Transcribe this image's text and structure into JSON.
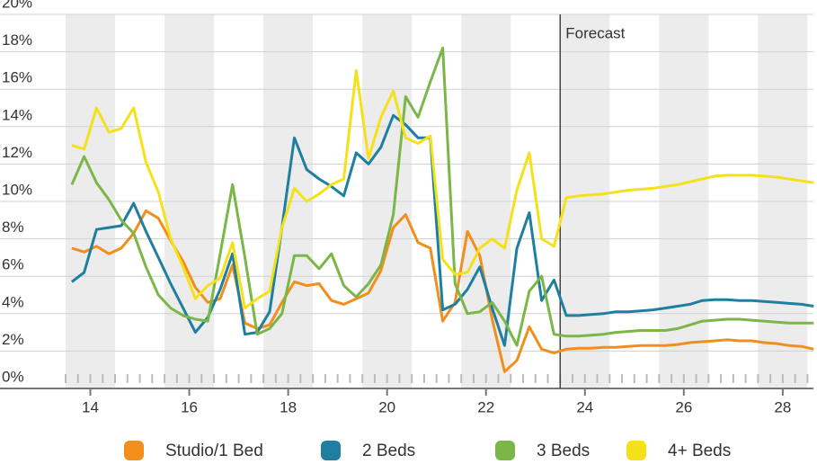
{
  "chart_data": {
    "type": "line",
    "x": [
      13.625,
      13.875,
      14.125,
      14.375,
      14.625,
      14.875,
      15.125,
      15.375,
      15.625,
      15.875,
      16.125,
      16.375,
      16.625,
      16.875,
      17.125,
      17.375,
      17.625,
      17.875,
      18.125,
      18.375,
      18.625,
      18.875,
      19.125,
      19.375,
      19.625,
      19.875,
      20.125,
      20.375,
      20.625,
      20.875,
      21.125,
      21.375,
      21.625,
      21.875,
      22.125,
      22.375,
      22.625,
      22.875,
      23.125,
      23.375,
      23.625,
      23.875,
      24.125,
      24.375,
      24.625,
      24.875,
      25.125,
      25.375,
      25.625,
      25.875,
      26.125,
      26.375,
      26.625,
      26.875,
      27.125,
      27.375,
      27.625,
      27.875,
      28.125,
      28.375,
      28.625
    ],
    "xlim": [
      13.5,
      28.62
    ],
    "xticks": [
      14,
      16,
      18,
      20,
      22,
      24,
      26,
      28
    ],
    "ylim": [
      0,
      20
    ],
    "yticks": [
      {
        "value": 0,
        "label": "0%"
      },
      {
        "value": 2,
        "label": "2%"
      },
      {
        "value": 4,
        "label": "4%"
      },
      {
        "value": 6,
        "label": "6%"
      },
      {
        "value": 8,
        "label": "8%"
      },
      {
        "value": 10,
        "label": "10%"
      },
      {
        "value": 12,
        "label": "12%"
      },
      {
        "value": 14,
        "label": "14%"
      },
      {
        "value": 16,
        "label": "16%"
      },
      {
        "value": 18,
        "label": "18%"
      },
      {
        "value": 20,
        "label": "20%"
      }
    ],
    "grid": true,
    "legend": "bottom",
    "annotation": {
      "text": "Forecast",
      "x": 23.5
    },
    "series": [
      {
        "name": "Studio/1 Bed",
        "color": "#f28e1c",
        "values": [
          7.5,
          7.3,
          7.6,
          7.2,
          7.5,
          8.3,
          9.5,
          9.1,
          7.9,
          6.8,
          5.4,
          4.6,
          4.8,
          6.6,
          3.5,
          3.2,
          3.4,
          4.6,
          5.7,
          5.5,
          5.6,
          4.7,
          4.5,
          4.8,
          5.1,
          6.3,
          8.6,
          9.3,
          7.8,
          7.5,
          3.6,
          4.6,
          8.4,
          7.1,
          3.7,
          0.9,
          1.5,
          3.3,
          2.1,
          1.9,
          2.1,
          2.15,
          2.15,
          2.2,
          2.2,
          2.25,
          2.3,
          2.3,
          2.3,
          2.35,
          2.45,
          2.5,
          2.55,
          2.6,
          2.55,
          2.55,
          2.45,
          2.4,
          2.3,
          2.25,
          2.1
        ]
      },
      {
        "name": "2 Beds",
        "color": "#1f7fa0",
        "values": [
          5.7,
          6.2,
          8.5,
          8.6,
          8.7,
          9.9,
          8.4,
          7.0,
          5.6,
          4.3,
          3.0,
          3.8,
          5.3,
          7.2,
          2.9,
          3.0,
          4.1,
          8.6,
          13.4,
          11.7,
          11.2,
          10.8,
          10.3,
          12.6,
          12.0,
          12.9,
          14.6,
          14.1,
          13.4,
          13.4,
          4.2,
          4.5,
          5.3,
          6.5,
          4.3,
          2.3,
          7.5,
          9.4,
          4.7,
          5.8,
          3.9,
          3.9,
          3.95,
          4.0,
          4.1,
          4.1,
          4.15,
          4.2,
          4.3,
          4.4,
          4.5,
          4.7,
          4.75,
          4.75,
          4.7,
          4.7,
          4.65,
          4.6,
          4.55,
          4.5,
          4.4
        ]
      },
      {
        "name": "3 Beds",
        "color": "#7ab648",
        "values": [
          10.9,
          12.4,
          11.0,
          10.1,
          9.0,
          8.3,
          6.5,
          5.0,
          4.3,
          3.9,
          3.7,
          3.6,
          7.2,
          10.9,
          7.0,
          2.9,
          3.2,
          4.0,
          7.1,
          7.1,
          6.4,
          7.2,
          5.5,
          4.9,
          5.6,
          6.6,
          9.3,
          15.6,
          14.5,
          16.4,
          18.2,
          5.6,
          4.0,
          4.1,
          4.6,
          3.6,
          2.3,
          5.2,
          6.0,
          2.9,
          2.8,
          2.8,
          2.85,
          2.9,
          3.0,
          3.05,
          3.1,
          3.1,
          3.1,
          3.2,
          3.4,
          3.6,
          3.65,
          3.7,
          3.7,
          3.65,
          3.6,
          3.55,
          3.5,
          3.5,
          3.5
        ]
      },
      {
        "name": "4+ Beds",
        "color": "#f5e11a",
        "values": [
          13.0,
          12.8,
          15.0,
          13.7,
          13.9,
          15.0,
          12.1,
          10.5,
          8.0,
          6.5,
          4.8,
          5.5,
          5.9,
          7.8,
          4.3,
          4.8,
          5.2,
          8.6,
          10.7,
          10.0,
          10.4,
          10.9,
          11.2,
          17.0,
          12.3,
          14.5,
          15.9,
          13.4,
          13.1,
          13.5,
          6.9,
          6.1,
          6.2,
          7.5,
          8.0,
          7.5,
          10.6,
          12.6,
          8.0,
          7.6,
          10.2,
          10.3,
          10.35,
          10.4,
          10.5,
          10.6,
          10.65,
          10.7,
          10.8,
          10.9,
          11.05,
          11.2,
          11.35,
          11.4,
          11.4,
          11.4,
          11.35,
          11.3,
          11.2,
          11.1,
          11.0
        ]
      }
    ]
  }
}
